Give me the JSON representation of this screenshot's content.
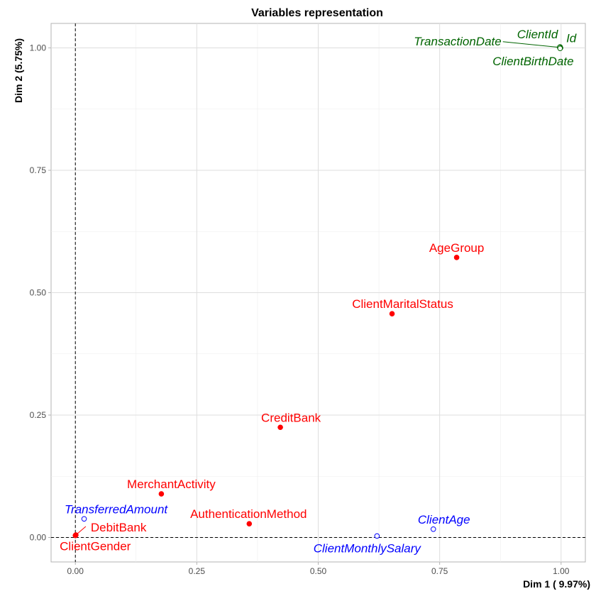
{
  "chart_data": {
    "type": "scatter",
    "title": "Variables representation",
    "xlabel": "Dim 1 ( 9.97%)",
    "ylabel": "Dim 2 (5.75%)",
    "xlim": [
      -0.05,
      1.05
    ],
    "ylim": [
      -0.05,
      1.05
    ],
    "x_ticks": [
      "0.00",
      "0.25",
      "0.50",
      "0.75",
      "1.00"
    ],
    "y_ticks": [
      "0.00",
      "0.25",
      "0.50",
      "0.75",
      "1.00"
    ],
    "grid": true,
    "reference_lines": {
      "x": 0,
      "y": 0,
      "style": "dashed"
    },
    "colors": {
      "red": "#ff0000",
      "blue": "#0000ff",
      "green": "#006400"
    },
    "points": [
      {
        "label": "AgeGroup",
        "x": 0.785,
        "y": 0.572,
        "color": "#ff0000",
        "filled": true,
        "italic": false,
        "anchor": "middle",
        "dx": 0,
        "dy": -8
      },
      {
        "label": "ClientMaritalStatus",
        "x": 0.652,
        "y": 0.457,
        "color": "#ff0000",
        "filled": true,
        "italic": false,
        "anchor": "middle",
        "dx": 15,
        "dy": -8
      },
      {
        "label": "CreditBank",
        "x": 0.422,
        "y": 0.225,
        "color": "#ff0000",
        "filled": true,
        "italic": false,
        "anchor": "middle",
        "dx": 15,
        "dy": -8
      },
      {
        "label": "MerchantActivity",
        "x": 0.177,
        "y": 0.089,
        "color": "#ff0000",
        "filled": true,
        "italic": false,
        "anchor": "middle",
        "dx": 14,
        "dy": -8
      },
      {
        "label": "AuthenticationMethod",
        "x": 0.358,
        "y": 0.028,
        "color": "#ff0000",
        "filled": true,
        "italic": false,
        "anchor": "middle",
        "dx": -1,
        "dy": -8
      },
      {
        "label": "DebitBank",
        "x": 0.001,
        "y": 0.005,
        "color": "#ff0000",
        "filled": true,
        "italic": false,
        "anchor": "start",
        "dx": 21,
        "dy": -5,
        "leader": [
          14,
          -12
        ]
      },
      {
        "label": "ClientGender",
        "x": 0.0,
        "y": 0.004,
        "color": "#ff0000",
        "filled": true,
        "italic": false,
        "anchor": "middle",
        "dx": 28,
        "dy": 21
      },
      {
        "label": "TransferredAmount",
        "x": 0.018,
        "y": 0.038,
        "color": "#0000ff",
        "filled": false,
        "italic": true,
        "anchor": "middle",
        "dx": 45,
        "dy": -8
      },
      {
        "label": "ClientAge",
        "x": 0.737,
        "y": 0.017,
        "color": "#0000ff",
        "filled": false,
        "italic": true,
        "anchor": "middle",
        "dx": 15,
        "dy": -8
      },
      {
        "label": "ClientMonthlySalary",
        "x": 0.621,
        "y": 0.003,
        "color": "#0000ff",
        "filled": false,
        "italic": true,
        "anchor": "middle",
        "dx": -14,
        "dy": 23
      },
      {
        "label": "Id",
        "x": 0.999,
        "y": 1.0,
        "color": "#006400",
        "filled": false,
        "italic": true,
        "anchor": "start",
        "dx": 8,
        "dy": -8
      },
      {
        "label": "ClientId",
        "x": 0.998,
        "y": 1.002,
        "color": "#006400",
        "filled": false,
        "italic": true,
        "anchor": "end",
        "dx": -3,
        "dy": -12
      },
      {
        "label": "TransactionDate",
        "x": 0.997,
        "y": 1.001,
        "color": "#006400",
        "filled": false,
        "italic": true,
        "anchor": "end",
        "dx": -82,
        "dy": -3,
        "leader": [
          -80,
          -8
        ]
      },
      {
        "label": "ClientBirthDate",
        "x": 0.998,
        "y": 0.999,
        "color": "#006400",
        "filled": false,
        "italic": true,
        "anchor": "middle",
        "dx": -38,
        "dy": 24
      }
    ]
  }
}
